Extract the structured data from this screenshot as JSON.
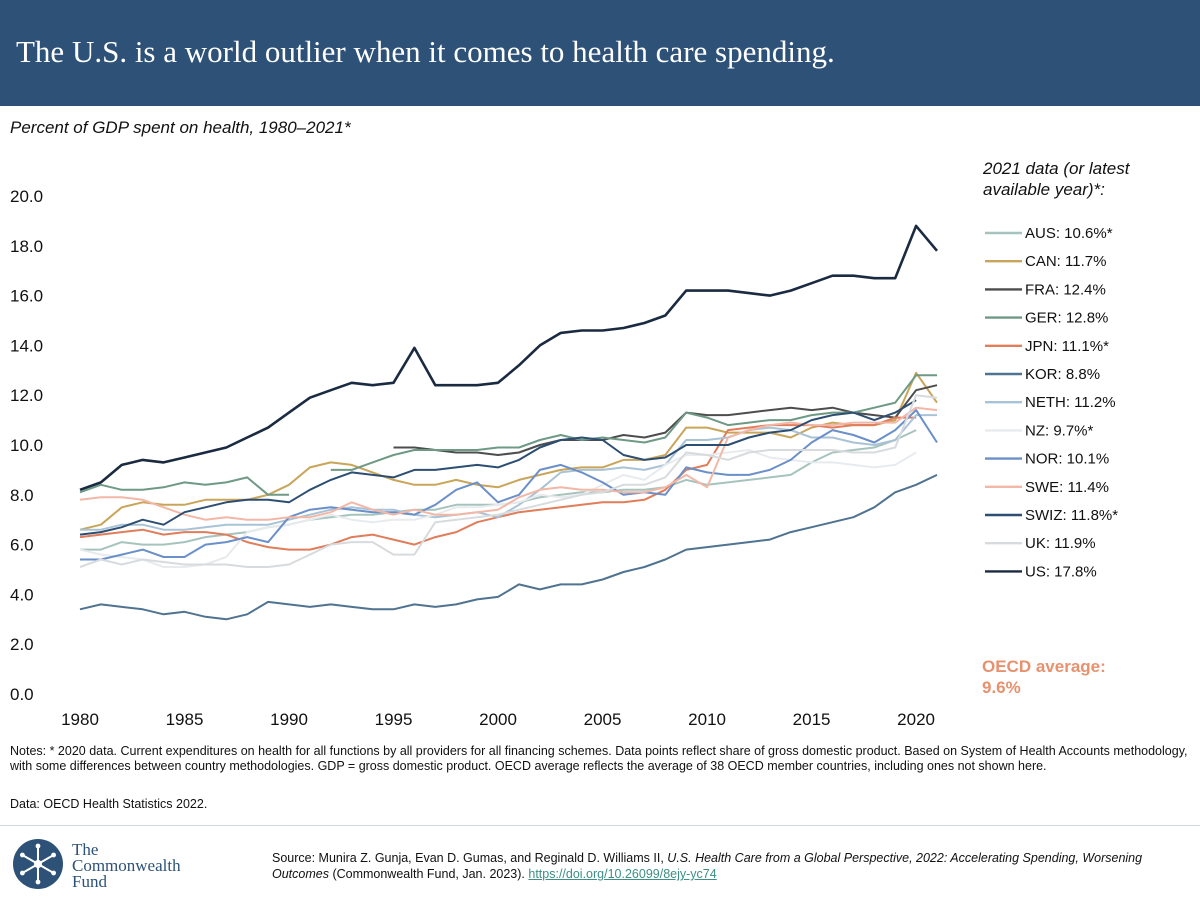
{
  "header": {
    "title": "The U.S. is a world outlier when it comes to health care spending."
  },
  "chart_data": {
    "type": "line",
    "title": "The U.S. is a world outlier when it comes to health care spending.",
    "subtitle": "Percent of GDP spent on health, 1980–2021*",
    "xlabel": "",
    "ylabel": "",
    "xlim": [
      1980,
      2021
    ],
    "ylim": [
      0,
      20
    ],
    "x_ticks": [
      1980,
      1985,
      1990,
      1995,
      2000,
      2005,
      2010,
      2015,
      2020
    ],
    "y_ticks": [
      "0.0",
      "2.0",
      "4.0",
      "6.0",
      "8.0",
      "10.0",
      "12.0",
      "14.0",
      "16.0",
      "18.0",
      "20.0"
    ],
    "grid": false,
    "legend_placement": "right",
    "legend_title": "2021 data (or latest available year)*:",
    "series": [
      {
        "name": "AUS: 10.6%*",
        "color": "#a6c4bd",
        "start": 1980,
        "values": [
          5.8,
          5.8,
          6.1,
          6.0,
          6.0,
          6.1,
          6.3,
          6.4,
          6.5,
          6.7,
          6.8,
          7.0,
          7.1,
          7.2,
          7.2,
          7.3,
          7.4,
          7.4,
          7.6,
          7.6,
          7.6,
          7.7,
          7.9,
          8.0,
          8.1,
          8.1,
          8.2,
          8.2,
          8.3,
          8.6,
          8.4,
          8.5,
          8.6,
          8.7,
          8.8,
          9.3,
          9.7,
          9.8,
          9.9,
          10.2,
          10.6
        ]
      },
      {
        "name": "CAN: 11.7%",
        "color": "#c9a55a",
        "start": 1980,
        "values": [
          6.6,
          6.8,
          7.5,
          7.7,
          7.6,
          7.6,
          7.8,
          7.8,
          7.8,
          8.0,
          8.4,
          9.1,
          9.3,
          9.2,
          8.9,
          8.6,
          8.4,
          8.4,
          8.6,
          8.4,
          8.3,
          8.6,
          8.8,
          9.0,
          9.1,
          9.1,
          9.4,
          9.4,
          9.6,
          10.7,
          10.7,
          10.5,
          10.5,
          10.5,
          10.3,
          10.7,
          10.9,
          10.8,
          10.8,
          11.0,
          12.9,
          11.7
        ]
      },
      {
        "name": "FRA: 12.4%",
        "color": "#4d4d4d",
        "start": 1995,
        "values": [
          9.9,
          9.9,
          9.8,
          9.7,
          9.7,
          9.6,
          9.7,
          10.0,
          10.2,
          10.2,
          10.2,
          10.4,
          10.3,
          10.5,
          11.3,
          11.2,
          11.2,
          11.3,
          11.4,
          11.5,
          11.4,
          11.5,
          11.3,
          11.2,
          11.1,
          12.2,
          12.4
        ]
      },
      {
        "name": "GER: 12.8%",
        "color": "#6e9a85",
        "start": 1980,
        "values": [
          8.1,
          8.4,
          8.2,
          8.2,
          8.3,
          8.5,
          8.4,
          8.5,
          8.7,
          8.0,
          8.0,
          null,
          9.0,
          9.0,
          9.3,
          9.6,
          9.8,
          9.8,
          9.8,
          9.8,
          9.9,
          9.9,
          10.2,
          10.4,
          10.2,
          10.3,
          10.2,
          10.1,
          10.3,
          11.3,
          11.1,
          10.8,
          10.9,
          11.0,
          11.0,
          11.2,
          11.3,
          11.3,
          11.5,
          11.7,
          12.8,
          12.8
        ]
      },
      {
        "name": "JPN: 11.1%*",
        "color": "#e07d5a",
        "start": 1980,
        "values": [
          6.3,
          6.4,
          6.5,
          6.6,
          6.4,
          6.5,
          6.5,
          6.4,
          6.1,
          5.9,
          5.8,
          5.8,
          6.0,
          6.3,
          6.4,
          6.2,
          6.0,
          6.3,
          6.5,
          6.9,
          7.1,
          7.3,
          7.4,
          7.5,
          7.6,
          7.7,
          7.7,
          7.8,
          8.2,
          9.0,
          9.2,
          10.6,
          10.7,
          10.8,
          10.8,
          10.8,
          10.7,
          10.8,
          10.8,
          11.1,
          11.1
        ]
      },
      {
        "name": "KOR: 8.8%",
        "color": "#4f7390",
        "start": 1980,
        "values": [
          3.4,
          3.6,
          3.5,
          3.4,
          3.2,
          3.3,
          3.1,
          3.0,
          3.2,
          3.7,
          3.6,
          3.5,
          3.6,
          3.5,
          3.4,
          3.4,
          3.6,
          3.5,
          3.6,
          3.8,
          3.9,
          4.4,
          4.2,
          4.4,
          4.4,
          4.6,
          4.9,
          5.1,
          5.4,
          5.8,
          5.9,
          6.0,
          6.1,
          6.2,
          6.5,
          6.7,
          6.9,
          7.1,
          7.5,
          8.1,
          8.4,
          8.8
        ]
      },
      {
        "name": "NETH: 11.2%",
        "color": "#a9c3d6",
        "start": 1980,
        "values": [
          6.6,
          6.6,
          6.8,
          6.8,
          6.6,
          6.6,
          6.7,
          6.8,
          6.8,
          6.8,
          7.0,
          7.2,
          7.4,
          7.5,
          7.4,
          7.4,
          7.2,
          7.1,
          7.2,
          7.3,
          7.1,
          7.6,
          8.2,
          8.9,
          9.0,
          9.0,
          9.1,
          9.0,
          9.2,
          10.2,
          10.2,
          10.3,
          10.6,
          10.7,
          10.6,
          10.3,
          10.3,
          10.1,
          10.0,
          10.2,
          11.2,
          11.2
        ]
      },
      {
        "name": "NZ: 9.7%*",
        "color": "#e8ebee",
        "start": 1980,
        "values": [
          5.8,
          5.6,
          5.5,
          5.4,
          5.1,
          5.1,
          5.2,
          5.5,
          6.5,
          6.7,
          6.8,
          7.0,
          7.2,
          7.0,
          6.9,
          7.0,
          7.0,
          7.2,
          7.5,
          7.5,
          7.6,
          7.7,
          8.0,
          7.9,
          8.0,
          8.4,
          8.8,
          8.6,
          9.2,
          9.6,
          9.6,
          9.7,
          9.8,
          9.5,
          9.4,
          9.3,
          9.3,
          9.2,
          9.1,
          9.2,
          9.7
        ]
      },
      {
        "name": "NOR: 10.1%",
        "color": "#6a8fc9",
        "start": 1980,
        "values": [
          5.4,
          5.4,
          5.6,
          5.8,
          5.5,
          5.5,
          6.0,
          6.1,
          6.3,
          6.1,
          7.1,
          7.4,
          7.5,
          7.4,
          7.3,
          7.3,
          7.2,
          7.6,
          8.2,
          8.5,
          7.7,
          8.0,
          9.0,
          9.2,
          8.9,
          8.5,
          8.0,
          8.1,
          8.0,
          9.1,
          8.9,
          8.8,
          8.8,
          9.0,
          9.4,
          10.1,
          10.6,
          10.4,
          10.1,
          10.6,
          11.4,
          10.1
        ]
      },
      {
        "name": "SWE: 11.4%",
        "color": "#f2b7a6",
        "start": 1980,
        "values": [
          7.8,
          7.9,
          7.9,
          7.8,
          7.5,
          7.2,
          7.0,
          7.1,
          7.0,
          7.0,
          7.1,
          7.1,
          7.3,
          7.7,
          7.4,
          7.2,
          7.4,
          7.2,
          7.2,
          7.3,
          7.4,
          7.9,
          8.2,
          8.3,
          8.2,
          8.2,
          8.1,
          8.1,
          8.3,
          8.8,
          8.3,
          10.3,
          10.6,
          10.8,
          10.9,
          10.8,
          10.8,
          10.9,
          10.9,
          10.9,
          11.5,
          11.4
        ]
      },
      {
        "name": "SWIZ: 11.8%*",
        "color": "#2d4e73",
        "start": 1980,
        "values": [
          6.4,
          6.5,
          6.7,
          7.0,
          6.8,
          7.3,
          7.5,
          7.7,
          7.8,
          7.8,
          7.7,
          8.2,
          8.6,
          8.9,
          8.8,
          8.7,
          9.0,
          9.0,
          9.1,
          9.2,
          9.1,
          9.4,
          9.9,
          10.2,
          10.3,
          10.2,
          9.6,
          9.4,
          9.5,
          10.0,
          10.0,
          10.0,
          10.3,
          10.5,
          10.6,
          11.0,
          11.2,
          11.3,
          11.0,
          11.3,
          11.8
        ]
      },
      {
        "name": "UK: 11.9%",
        "color": "#d8dbde",
        "start": 1980,
        "values": [
          5.1,
          5.4,
          5.2,
          5.4,
          5.3,
          5.2,
          5.2,
          5.2,
          5.1,
          5.1,
          5.2,
          5.6,
          6.0,
          6.1,
          6.1,
          5.6,
          5.6,
          6.9,
          7.0,
          7.1,
          7.2,
          7.4,
          7.6,
          7.8,
          8.0,
          8.1,
          8.4,
          8.4,
          8.7,
          9.7,
          9.6,
          9.4,
          9.7,
          9.8,
          9.8,
          9.8,
          9.8,
          9.7,
          9.7,
          9.9,
          12.0,
          11.9
        ]
      },
      {
        "name": "US: 17.8%",
        "color": "#1a2a40",
        "start": 1980,
        "values": [
          8.2,
          8.5,
          9.2,
          9.4,
          9.3,
          9.5,
          9.7,
          9.9,
          10.3,
          10.7,
          11.3,
          11.9,
          12.2,
          12.5,
          12.4,
          12.5,
          13.9,
          12.4,
          12.4,
          12.4,
          12.5,
          13.2,
          14.0,
          14.5,
          14.6,
          14.6,
          14.7,
          14.9,
          15.2,
          16.2,
          16.2,
          16.2,
          16.1,
          16.0,
          16.2,
          16.5,
          16.8,
          16.8,
          16.7,
          16.7,
          18.8,
          17.8
        ]
      }
    ],
    "annotation": {
      "label": "OECD average:",
      "value": "9.6%",
      "color": "#e8916e"
    }
  },
  "notes": "Notes: * 2020 data. Current expenditures on health for all functions by all providers for all financing schemes. Data points reflect share of gross domestic product. Based on System of Health Accounts methodology, with some differences between country methodologies. GDP = gross domestic product. OECD average reflects the average of 38 OECD member countries, including ones not shown here.",
  "data_source": "Data: OECD Health Statistics 2022.",
  "logo": {
    "line1": "The",
    "line2": "Commonwealth",
    "line3": "Fund"
  },
  "source": {
    "prefix": "Source: Munira Z. Gunja, Evan D. Gumas, and Reginald D. Williams II, ",
    "title": "U.S. Health Care from a Global Perspective, 2022: Accelerating Spending, Worsening Outcomes",
    "suffix": " (Commonwealth Fund, Jan. 2023). ",
    "link": "https://doi.org/10.26099/8ejy-yc74"
  }
}
